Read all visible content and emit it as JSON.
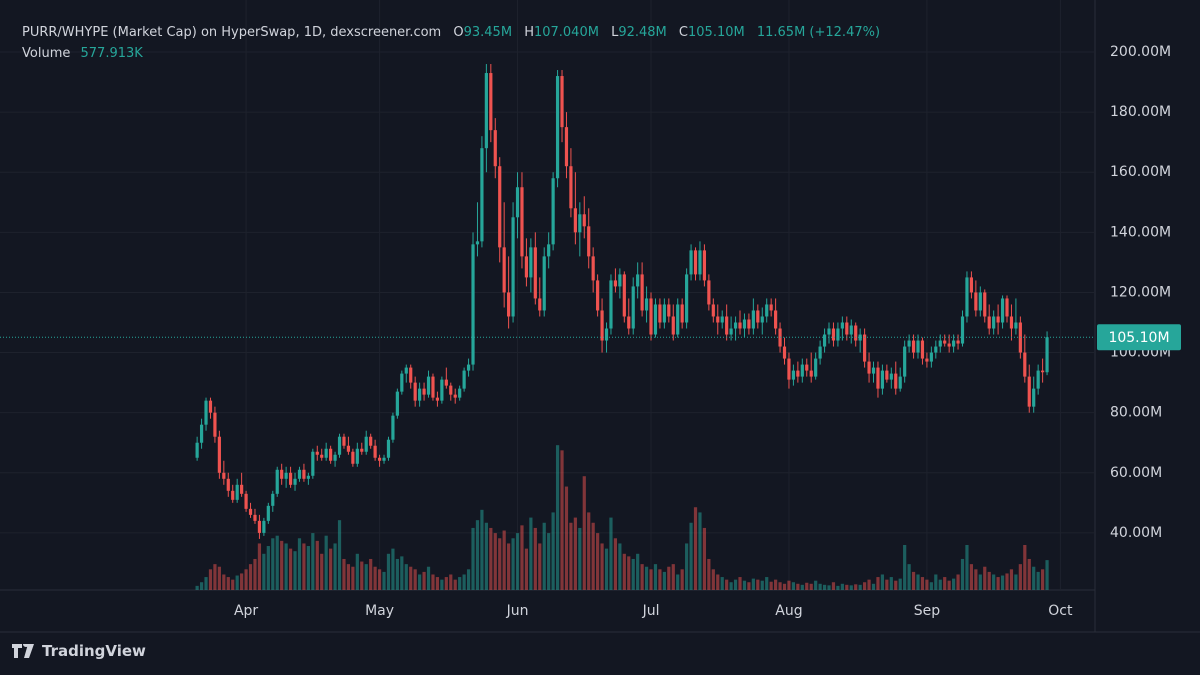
{
  "chart_data": {
    "type": "candlestick",
    "title": "PURR/WHYPE (Market Cap) on HyperSwap, 1D, dexscreener.com",
    "ohlc_labels": [
      {
        "key": "O",
        "text": "93.45M"
      },
      {
        "key": "H",
        "text": "107.040M"
      },
      {
        "key": "L",
        "text": "92.48M"
      },
      {
        "key": "C",
        "text": "105.10M"
      }
    ],
    "change": "11.65M (+12.47%)",
    "volume_title": "Volume",
    "volume_text": "577.913K",
    "watermark": "TradingView",
    "up_color": "#26a69a",
    "down_color": "#ef5350",
    "grid": true,
    "xlim": [
      -44.3,
      201.1
    ],
    "xticks": [
      {
        "value": 11,
        "label": "Apr"
      },
      {
        "value": 41,
        "label": "May"
      },
      {
        "value": 72,
        "label": "Jun"
      },
      {
        "value": 102,
        "label": "Jul"
      },
      {
        "value": 133,
        "label": "Aug"
      },
      {
        "value": 164,
        "label": "Sep"
      },
      {
        "value": 194,
        "label": "Oct"
      }
    ],
    "ylim": [
      21,
      217.3
    ],
    "yticks": [
      {
        "value": 40,
        "label": "40.00M"
      },
      {
        "value": 60,
        "label": "60.00M"
      },
      {
        "value": 80,
        "label": "80.00M"
      },
      {
        "value": 100,
        "label": "100.00M"
      },
      {
        "value": 120,
        "label": "120.00M"
      },
      {
        "value": 140,
        "label": "140.00M"
      },
      {
        "value": 160,
        "label": "160.00M"
      },
      {
        "value": 180,
        "label": "180.00M"
      },
      {
        "value": 200,
        "label": "200.00M"
      }
    ],
    "last_price": {
      "value": 105.1,
      "label": "105.10M"
    },
    "volume_lim": [
      0,
      2900
    ],
    "x": [
      0,
      1,
      2,
      3,
      4,
      5,
      6,
      7,
      8,
      9,
      10,
      11,
      12,
      13,
      14,
      15,
      16,
      17,
      18,
      19,
      20,
      21,
      22,
      23,
      24,
      25,
      26,
      27,
      28,
      29,
      30,
      31,
      32,
      33,
      34,
      35,
      36,
      37,
      38,
      39,
      40,
      41,
      42,
      43,
      44,
      45,
      46,
      47,
      48,
      49,
      50,
      51,
      52,
      53,
      54,
      55,
      56,
      57,
      58,
      59,
      60,
      61,
      62,
      63,
      64,
      65,
      66,
      67,
      68,
      69,
      70,
      71,
      72,
      73,
      74,
      75,
      76,
      77,
      78,
      79,
      80,
      81,
      82,
      83,
      84,
      85,
      86,
      87,
      88,
      89,
      90,
      91,
      92,
      93,
      94,
      95,
      96,
      97,
      98,
      99,
      100,
      101,
      102,
      103,
      104,
      105,
      106,
      107,
      108,
      109,
      110,
      111,
      112,
      113,
      114,
      115,
      116,
      117,
      118,
      119,
      120,
      121,
      122,
      123,
      124,
      125,
      126,
      127,
      128,
      129,
      130,
      131,
      132,
      133,
      134,
      135,
      136,
      137,
      138,
      139,
      140,
      141,
      142,
      143,
      144,
      145,
      146,
      147,
      148,
      149,
      150,
      151,
      152,
      153,
      154,
      155,
      156,
      157,
      158,
      159,
      160,
      161,
      162,
      163,
      164,
      165,
      166,
      167,
      168,
      169,
      170,
      171,
      172,
      173,
      174,
      175,
      176,
      177,
      178,
      179,
      180,
      181,
      182,
      183,
      184,
      185,
      186,
      187,
      188,
      189,
      190,
      191
    ],
    "open": [
      65,
      70,
      76,
      84,
      80,
      72,
      60,
      58,
      54,
      51,
      56,
      53,
      48,
      46,
      44,
      40,
      44,
      49,
      53,
      61,
      58,
      60,
      56,
      58,
      61,
      58,
      59,
      67,
      66,
      65,
      68,
      64,
      66,
      72,
      69,
      67,
      63,
      68,
      67,
      72,
      69,
      65,
      64,
      65,
      71,
      79,
      87,
      93,
      95,
      90,
      84,
      88,
      86,
      92,
      85,
      84,
      91,
      89,
      86,
      85,
      88,
      94,
      96,
      136,
      137,
      168,
      193,
      174,
      162,
      135,
      120,
      112,
      145,
      155,
      132,
      125,
      135,
      118,
      114,
      132,
      136,
      158,
      192,
      175,
      162,
      148,
      140,
      146,
      142,
      132,
      124,
      114,
      104,
      108,
      124,
      122,
      126,
      112,
      108,
      122,
      126,
      114,
      118,
      106,
      116,
      110,
      116,
      112,
      106,
      116,
      110,
      126,
      134,
      126,
      134,
      124,
      116,
      112,
      110,
      112,
      106,
      108,
      110,
      108,
      111,
      108,
      114,
      110,
      112,
      116,
      114,
      108,
      102,
      98,
      91,
      94,
      92,
      96,
      94,
      92,
      98,
      102,
      106,
      108,
      104,
      108,
      110,
      106,
      109,
      104,
      106,
      97,
      93,
      95,
      88,
      94,
      91,
      93,
      88,
      92,
      102,
      104,
      100,
      104,
      98,
      97,
      100,
      102,
      104,
      103,
      102,
      104,
      103,
      112,
      125,
      120,
      114,
      120,
      112,
      108,
      112,
      110,
      118,
      112,
      108,
      110,
      100,
      92,
      82,
      88,
      94,
      93.45
    ],
    "high": [
      72,
      78,
      85,
      85,
      82,
      74,
      64,
      60,
      56,
      58,
      60,
      54,
      50,
      48,
      46,
      45,
      50,
      54,
      62,
      63,
      62,
      62,
      60,
      62,
      63,
      60,
      68,
      69,
      68,
      70,
      69,
      67,
      73,
      73,
      72,
      68,
      70,
      70,
      74,
      73,
      71,
      66,
      66,
      72,
      80,
      88,
      94,
      96,
      96,
      92,
      90,
      90,
      94,
      93,
      87,
      92,
      95,
      90,
      88,
      89,
      95,
      98,
      140,
      150,
      172,
      196,
      196,
      178,
      165,
      150,
      132,
      150,
      160,
      160,
      138,
      138,
      140,
      125,
      135,
      140,
      160,
      194,
      194,
      180,
      168,
      160,
      150,
      152,
      148,
      135,
      126,
      118,
      110,
      126,
      128,
      128,
      127,
      118,
      125,
      130,
      130,
      122,
      120,
      118,
      118,
      118,
      118,
      116,
      118,
      118,
      128,
      136,
      135,
      137,
      136,
      126,
      118,
      116,
      114,
      116,
      112,
      112,
      114,
      113,
      113,
      118,
      116,
      115,
      118,
      118,
      118,
      110,
      105,
      100,
      96,
      97,
      98,
      98,
      100,
      100,
      104,
      108,
      110,
      110,
      110,
      112,
      112,
      111,
      110,
      108,
      108,
      100,
      97,
      97,
      96,
      96,
      95,
      97,
      95,
      104,
      106,
      106,
      106,
      105,
      100,
      102,
      104,
      106,
      106,
      106,
      106,
      106,
      114,
      127,
      127,
      124,
      122,
      121,
      116,
      114,
      116,
      119,
      119,
      116,
      118,
      112,
      106,
      96,
      92,
      96,
      98,
      107.04
    ],
    "low": [
      64,
      68,
      74,
      78,
      70,
      58,
      56,
      52,
      50,
      50,
      52,
      47,
      45,
      43,
      38,
      39,
      43,
      47,
      52,
      56,
      55,
      55,
      54,
      57,
      57,
      56,
      58,
      64,
      64,
      64,
      63,
      62,
      65,
      68,
      66,
      62,
      62,
      66,
      66,
      68,
      64,
      62,
      63,
      64,
      70,
      78,
      86,
      90,
      88,
      82,
      82,
      84,
      85,
      84,
      82,
      83,
      88,
      84,
      83,
      84,
      87,
      92,
      94,
      132,
      135,
      160,
      170,
      158,
      130,
      115,
      108,
      110,
      138,
      128,
      122,
      120,
      116,
      112,
      112,
      128,
      134,
      155,
      170,
      158,
      145,
      136,
      132,
      138,
      128,
      120,
      112,
      100,
      100,
      106,
      120,
      118,
      110,
      106,
      106,
      118,
      112,
      110,
      104,
      105,
      108,
      108,
      110,
      104,
      105,
      108,
      108,
      124,
      124,
      124,
      122,
      114,
      110,
      106,
      108,
      104,
      104,
      104,
      106,
      105,
      106,
      106,
      108,
      106,
      110,
      112,
      106,
      100,
      96,
      88,
      89,
      90,
      90,
      92,
      90,
      91,
      96,
      100,
      103,
      102,
      102,
      104,
      104,
      103,
      102,
      100,
      95,
      90,
      90,
      85,
      86,
      90,
      88,
      86,
      87,
      90,
      100,
      98,
      98,
      96,
      95,
      95,
      98,
      100,
      102,
      100,
      100,
      101,
      102,
      110,
      118,
      112,
      112,
      110,
      106,
      106,
      106,
      108,
      110,
      104,
      106,
      98,
      90,
      80,
      80,
      86,
      90,
      92.48
    ],
    "close": [
      70,
      76,
      84,
      80,
      72,
      60,
      58,
      54,
      51,
      56,
      53,
      48,
      46,
      44,
      40,
      44,
      49,
      53,
      61,
      58,
      60,
      56,
      58,
      61,
      58,
      59,
      67,
      66,
      65,
      68,
      64,
      66,
      72,
      69,
      67,
      63,
      68,
      67,
      72,
      69,
      65,
      64,
      65,
      71,
      79,
      87,
      93,
      95,
      90,
      84,
      88,
      86,
      92,
      85,
      84,
      91,
      89,
      86,
      85,
      88,
      94,
      96,
      136,
      137,
      168,
      193,
      174,
      162,
      135,
      120,
      112,
      145,
      155,
      132,
      125,
      135,
      118,
      114,
      132,
      136,
      158,
      192,
      175,
      162,
      148,
      140,
      146,
      142,
      132,
      124,
      114,
      104,
      108,
      124,
      122,
      126,
      112,
      108,
      122,
      126,
      114,
      118,
      106,
      116,
      110,
      116,
      112,
      106,
      116,
      110,
      126,
      134,
      126,
      134,
      124,
      116,
      112,
      110,
      112,
      106,
      108,
      110,
      108,
      111,
      108,
      114,
      110,
      112,
      116,
      114,
      108,
      102,
      98,
      91,
      94,
      92,
      96,
      94,
      92,
      98,
      102,
      106,
      108,
      104,
      108,
      110,
      106,
      109,
      104,
      106,
      97,
      93,
      95,
      88,
      94,
      91,
      93,
      88,
      92,
      102,
      104,
      100,
      104,
      98,
      97,
      100,
      102,
      104,
      103,
      102,
      104,
      103,
      112,
      125,
      120,
      114,
      120,
      112,
      108,
      112,
      110,
      118,
      112,
      108,
      110,
      100,
      92,
      82,
      88,
      94,
      93.45,
      105.1
    ],
    "volume": [
      80,
      150,
      250,
      400,
      500,
      450,
      300,
      250,
      200,
      280,
      320,
      400,
      500,
      600,
      900,
      700,
      850,
      1000,
      1050,
      950,
      900,
      800,
      750,
      1000,
      900,
      850,
      1100,
      950,
      700,
      1050,
      800,
      900,
      1350,
      600,
      500,
      450,
      700,
      550,
      500,
      600,
      450,
      400,
      350,
      700,
      800,
      600,
      650,
      500,
      450,
      400,
      300,
      350,
      450,
      300,
      250,
      200,
      250,
      300,
      200,
      250,
      300,
      400,
      1200,
      1350,
      1550,
      1300,
      1200,
      1100,
      1000,
      1150,
      900,
      1000,
      1100,
      1250,
      800,
      1400,
      1200,
      900,
      1300,
      1100,
      1500,
      2800,
      2700,
      2000,
      1300,
      1400,
      1200,
      2200,
      1500,
      1300,
      1100,
      900,
      800,
      1400,
      1000,
      900,
      700,
      650,
      600,
      700,
      500,
      450,
      400,
      500,
      400,
      350,
      450,
      500,
      300,
      400,
      900,
      1300,
      1600,
      1500,
      1200,
      600,
      400,
      300,
      250,
      200,
      150,
      200,
      250,
      180,
      150,
      220,
      200,
      180,
      250,
      160,
      200,
      150,
      120,
      180,
      150,
      120,
      100,
      140,
      120,
      180,
      120,
      100,
      90,
      150,
      80,
      120,
      100,
      90,
      110,
      100,
      150,
      200,
      120,
      250,
      300,
      200,
      250,
      180,
      220,
      870,
      500,
      350,
      300,
      250,
      200,
      150,
      300,
      200,
      250,
      180,
      220,
      300,
      600,
      870,
      500,
      400,
      300,
      450,
      350,
      300,
      250,
      280,
      320,
      400,
      300,
      500,
      870,
      600,
      450,
      350,
      400,
      577.913
    ]
  }
}
